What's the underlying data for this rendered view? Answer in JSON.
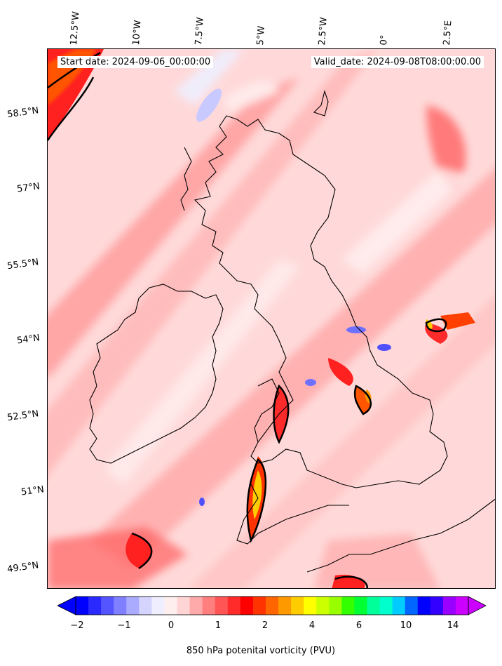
{
  "header": {
    "start_date": "Start date: 2024-09-06_00:00:00",
    "valid_date": "Valid_date: 2024-09-08T08:00:00.00"
  },
  "longitude_labels": [
    "12.5°W",
    "10°W",
    "7.5°W",
    "5°W",
    "2.5°W",
    "0°",
    "2.5°E"
  ],
  "latitude_labels": [
    "58.5°N",
    "57°N",
    "55.5°N",
    "54°N",
    "52.5°N",
    "51°N",
    "49.5°N"
  ],
  "colorbar": {
    "label": "850 hPa potenital vorticity (PVU)",
    "ticks": [
      "−2",
      "−1",
      "0",
      "1",
      "2",
      "4",
      "6",
      "10",
      "14"
    ],
    "colors": [
      "#0000ff",
      "#2a2aff",
      "#5555ff",
      "#7f7fff",
      "#aaaaff",
      "#d4d4ff",
      "#eeeeff",
      "#ffeeee",
      "#ffd4d4",
      "#ffaaaa",
      "#ff7f7f",
      "#ff5555",
      "#ff2a2a",
      "#ff0000",
      "#ff3300",
      "#ff6600",
      "#ff9900",
      "#ffcc00",
      "#ffff00",
      "#ccff00",
      "#99ff00",
      "#33ff00",
      "#00ff33",
      "#00ff99",
      "#00ffcc",
      "#00ccff",
      "#0066ff",
      "#0000ff",
      "#3300ff",
      "#9900ff",
      "#cc00ff"
    ]
  },
  "map": {
    "background_color": "#ffd6d6",
    "coastline_color": "#000000"
  }
}
